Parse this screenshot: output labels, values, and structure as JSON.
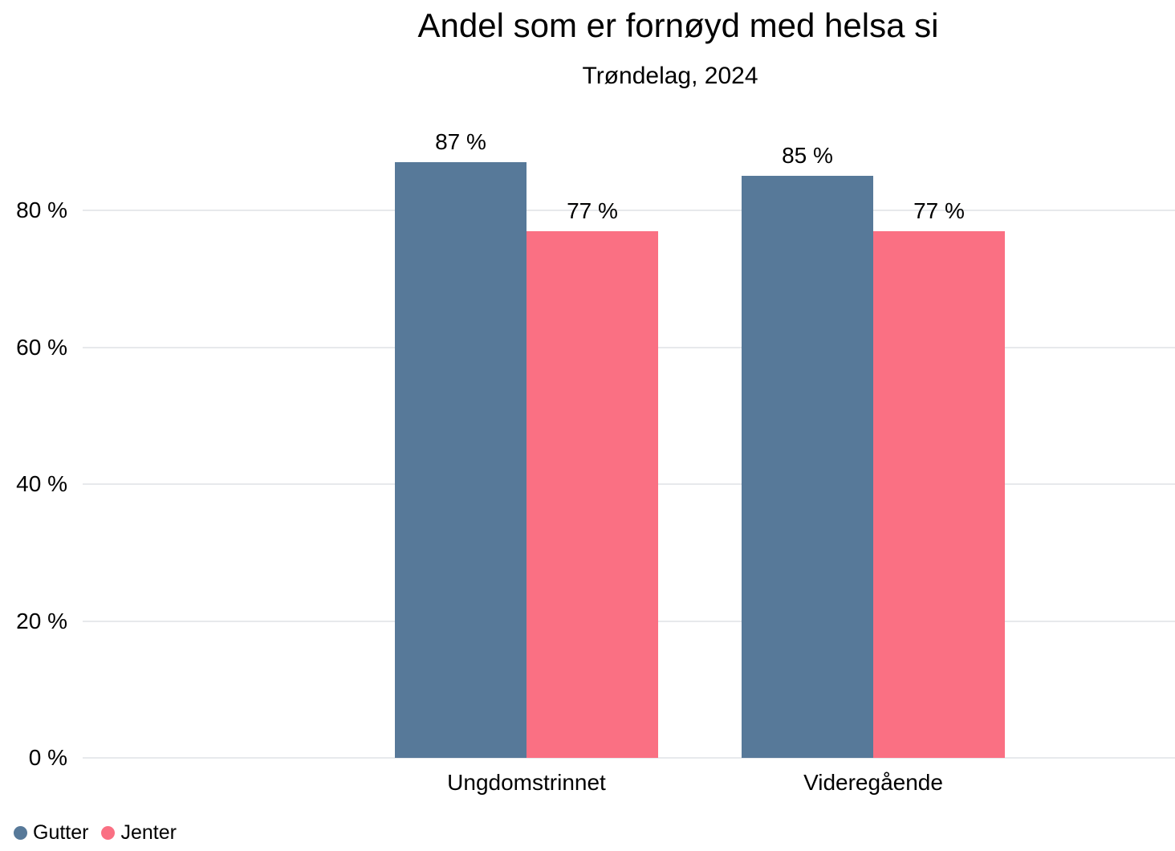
{
  "chart_data": {
    "type": "bar",
    "title": "Andel som er fornøyd med helsa si",
    "subtitle": "Trøndelag, 2024",
    "categories": [
      "Ungdomstrinnet",
      "Videregående"
    ],
    "series": [
      {
        "name": "Gutter",
        "color": "#577999",
        "values": [
          87,
          85
        ],
        "value_labels": [
          "87 %",
          "85 %"
        ]
      },
      {
        "name": "Jenter",
        "color": "#FA7083",
        "values": [
          77,
          77
        ],
        "value_labels": [
          "77 %",
          "77 %"
        ]
      }
    ],
    "y_axis": {
      "ticks": [
        {
          "value": 0,
          "label": "0 %"
        },
        {
          "value": 20,
          "label": "20 %"
        },
        {
          "value": 40,
          "label": "40 %"
        },
        {
          "value": 60,
          "label": "60 %"
        },
        {
          "value": 80,
          "label": "80 %"
        }
      ],
      "range": [
        0,
        100
      ]
    },
    "grid": true,
    "legend_position": "bottom-left",
    "colors": {
      "background": "#FFFFFF",
      "text": "#000000",
      "gridline": "#E7E9EC"
    }
  }
}
